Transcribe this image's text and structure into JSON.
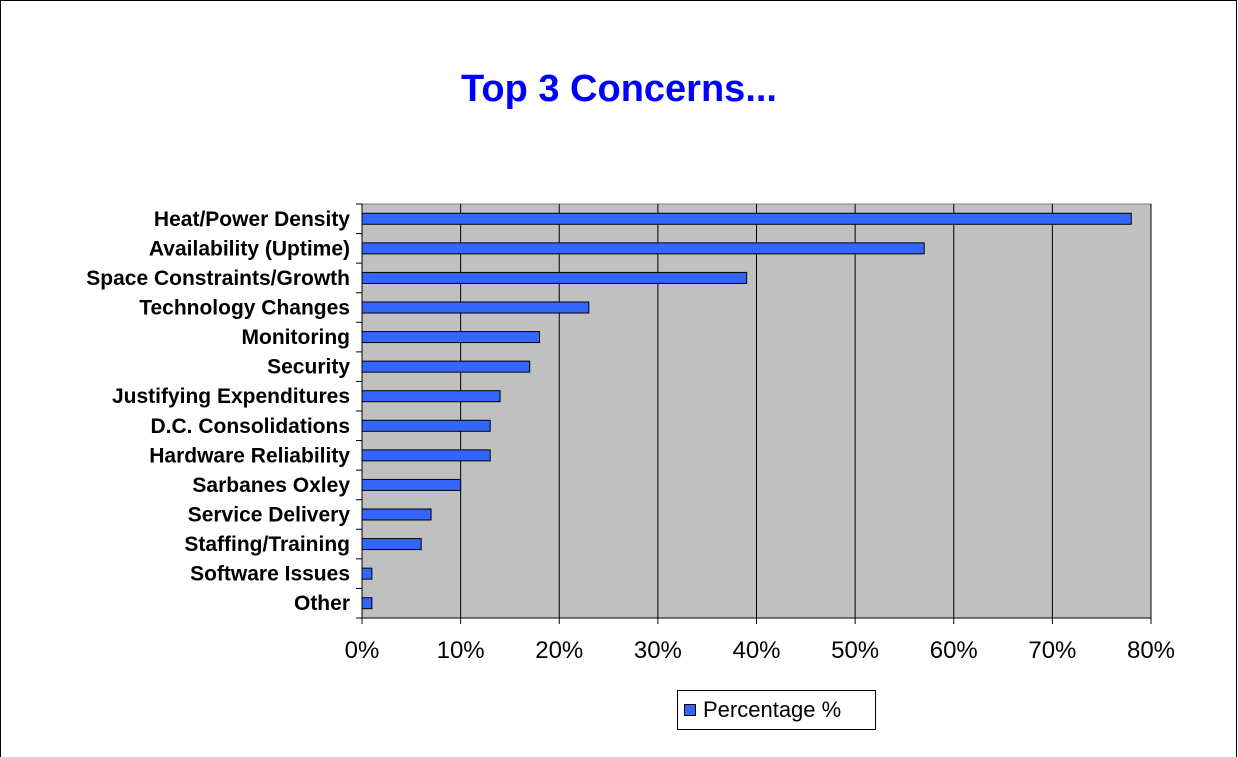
{
  "colors": {
    "plot_background": "#c0c0c0",
    "bar_fill": "#3366ff",
    "title_color": "#0000ff",
    "gridline": "#000000"
  },
  "chart_data": {
    "type": "bar",
    "orientation": "horizontal",
    "title": "Top 3 Concerns...",
    "categories": [
      "Heat/Power Density",
      "Availability (Uptime)",
      "Space Constraints/Growth",
      "Technology Changes",
      "Monitoring",
      "Security",
      "Justifying Expenditures",
      "D.C. Consolidations",
      "Hardware Reliability",
      "Sarbanes Oxley",
      "Service Delivery",
      "Staffing/Training",
      "Software Issues",
      "Other"
    ],
    "series": [
      {
        "name": "Percentage %",
        "values": [
          78,
          57,
          39,
          23,
          18,
          17,
          14,
          13,
          13,
          10,
          7,
          6,
          1,
          1
        ]
      }
    ],
    "xlim": [
      0,
      80
    ],
    "x_ticks": [
      0,
      10,
      20,
      30,
      40,
      50,
      60,
      70,
      80
    ],
    "x_tick_labels": [
      "0%",
      "10%",
      "20%",
      "30%",
      "40%",
      "50%",
      "60%",
      "70%",
      "80%"
    ],
    "grid": true,
    "legend": "bottom"
  }
}
